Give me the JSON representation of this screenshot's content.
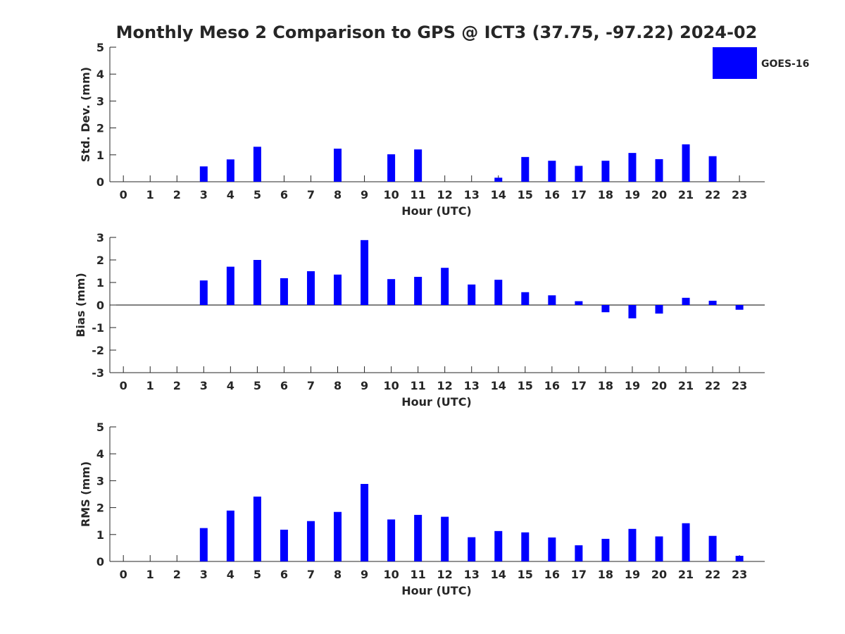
{
  "title": "Monthly Meso 2 Comparison to GPS @ ICT3 (37.75, -97.22) 2024-02",
  "legend": {
    "label": "GOES-16",
    "color": "#0000ff",
    "position": "top-right"
  },
  "chart_data": [
    {
      "type": "bar",
      "xlabel": "Hour (UTC)",
      "ylabel": "Std. Dev. (mm)",
      "ylim": [
        0,
        5
      ],
      "yticks": [
        "0",
        "1",
        "2",
        "3",
        "4",
        "5"
      ],
      "categories": [
        "0",
        "1",
        "2",
        "3",
        "4",
        "5",
        "6",
        "7",
        "8",
        "9",
        "10",
        "11",
        "12",
        "13",
        "14",
        "15",
        "16",
        "17",
        "18",
        "19",
        "20",
        "21",
        "22",
        "23"
      ],
      "series": [
        {
          "name": "GOES-16",
          "color": "#0000ff",
          "values": [
            null,
            null,
            null,
            0.57,
            0.83,
            1.3,
            null,
            null,
            1.23,
            null,
            1.02,
            1.2,
            null,
            null,
            0.15,
            0.92,
            0.78,
            0.59,
            0.78,
            1.07,
            0.84,
            1.39,
            0.95,
            null
          ]
        }
      ]
    },
    {
      "type": "bar",
      "xlabel": "Hour (UTC)",
      "ylabel": "Bias (mm)",
      "ylim": [
        -3,
        3
      ],
      "yticks": [
        "-3",
        "-2",
        "-1",
        "0",
        "1",
        "2",
        "3"
      ],
      "categories": [
        "0",
        "1",
        "2",
        "3",
        "4",
        "5",
        "6",
        "7",
        "8",
        "9",
        "10",
        "11",
        "12",
        "13",
        "14",
        "15",
        "16",
        "17",
        "18",
        "19",
        "20",
        "21",
        "22",
        "23"
      ],
      "series": [
        {
          "name": "GOES-16",
          "color": "#0000ff",
          "values": [
            null,
            null,
            null,
            1.09,
            1.7,
            2.0,
            1.19,
            1.5,
            1.35,
            2.88,
            1.15,
            1.25,
            1.65,
            0.91,
            1.12,
            0.57,
            0.43,
            0.17,
            -0.32,
            -0.59,
            -0.38,
            0.32,
            0.19,
            -0.21
          ]
        }
      ]
    },
    {
      "type": "bar",
      "xlabel": "Hour (UTC)",
      "ylabel": "RMS (mm)",
      "ylim": [
        0,
        5
      ],
      "yticks": [
        "0",
        "1",
        "2",
        "3",
        "4",
        "5"
      ],
      "categories": [
        "0",
        "1",
        "2",
        "3",
        "4",
        "5",
        "6",
        "7",
        "8",
        "9",
        "10",
        "11",
        "12",
        "13",
        "14",
        "15",
        "16",
        "17",
        "18",
        "19",
        "20",
        "21",
        "22",
        "23"
      ],
      "series": [
        {
          "name": "GOES-16",
          "color": "#0000ff",
          "values": [
            null,
            null,
            null,
            1.24,
            1.89,
            2.41,
            1.18,
            1.5,
            1.84,
            2.88,
            1.56,
            1.73,
            1.66,
            0.9,
            1.13,
            1.08,
            0.89,
            0.6,
            0.84,
            1.21,
            0.93,
            1.42,
            0.95,
            0.21
          ]
        }
      ]
    }
  ]
}
